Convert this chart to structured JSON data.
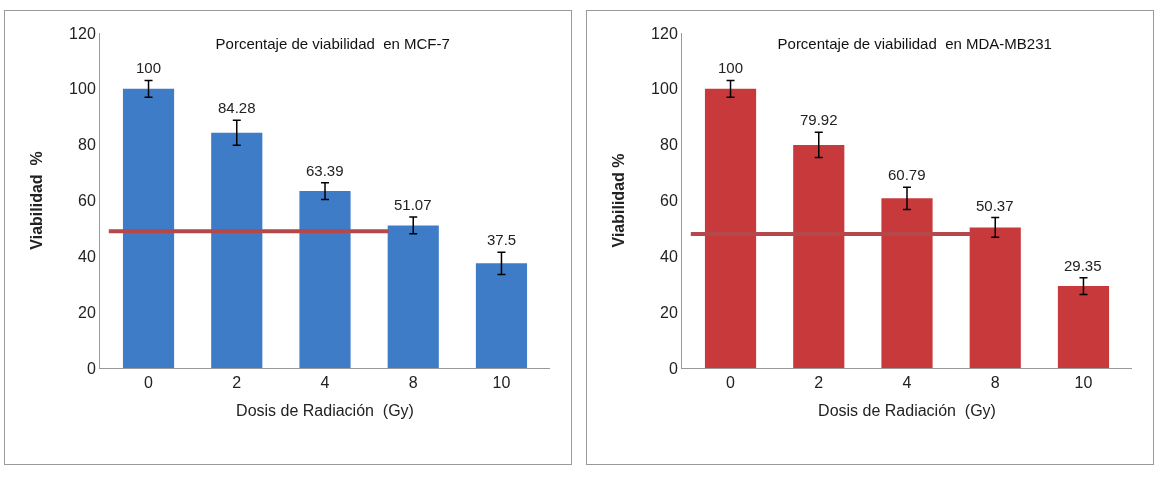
{
  "chart_data": [
    {
      "type": "bar",
      "title": "Porcentaje de viabilidad  en MCF-7",
      "xlabel": "Dosis de Radiación  (Gy)",
      "ylabel": "Viabilidad  %",
      "categories": [
        "0",
        "2",
        "4",
        "8",
        "10"
      ],
      "values": [
        100,
        84.28,
        63.39,
        51.07,
        37.5
      ],
      "errors": [
        3,
        4.5,
        3,
        3,
        4
      ],
      "color": "#3f7cc8",
      "ylim": [
        0,
        120
      ],
      "yticks": [
        0,
        20,
        40,
        60,
        80,
        100,
        120
      ],
      "grid": false,
      "data_labels": true,
      "ref_lines": [
        {
          "axis": "y",
          "value": 49,
          "color": "#b5484a"
        }
      ]
    },
    {
      "type": "bar",
      "title": "Porcentaje de viabilidad  en MDA-MB231",
      "xlabel": "Dosis de Radiación  (Gy)",
      "ylabel": "Viabilidad %",
      "categories": [
        "0",
        "2",
        "4",
        "8",
        "10"
      ],
      "values": [
        100,
        79.92,
        60.79,
        50.37,
        29.35
      ],
      "errors": [
        3,
        4.5,
        4,
        3.5,
        3
      ],
      "color": "#c8393b",
      "ylim": [
        0,
        120
      ],
      "yticks": [
        0,
        20,
        40,
        60,
        80,
        100,
        120
      ],
      "grid": false,
      "data_labels": true,
      "ref_lines": [
        {
          "axis": "y",
          "value": 48,
          "color": "#b5484a"
        }
      ]
    }
  ]
}
